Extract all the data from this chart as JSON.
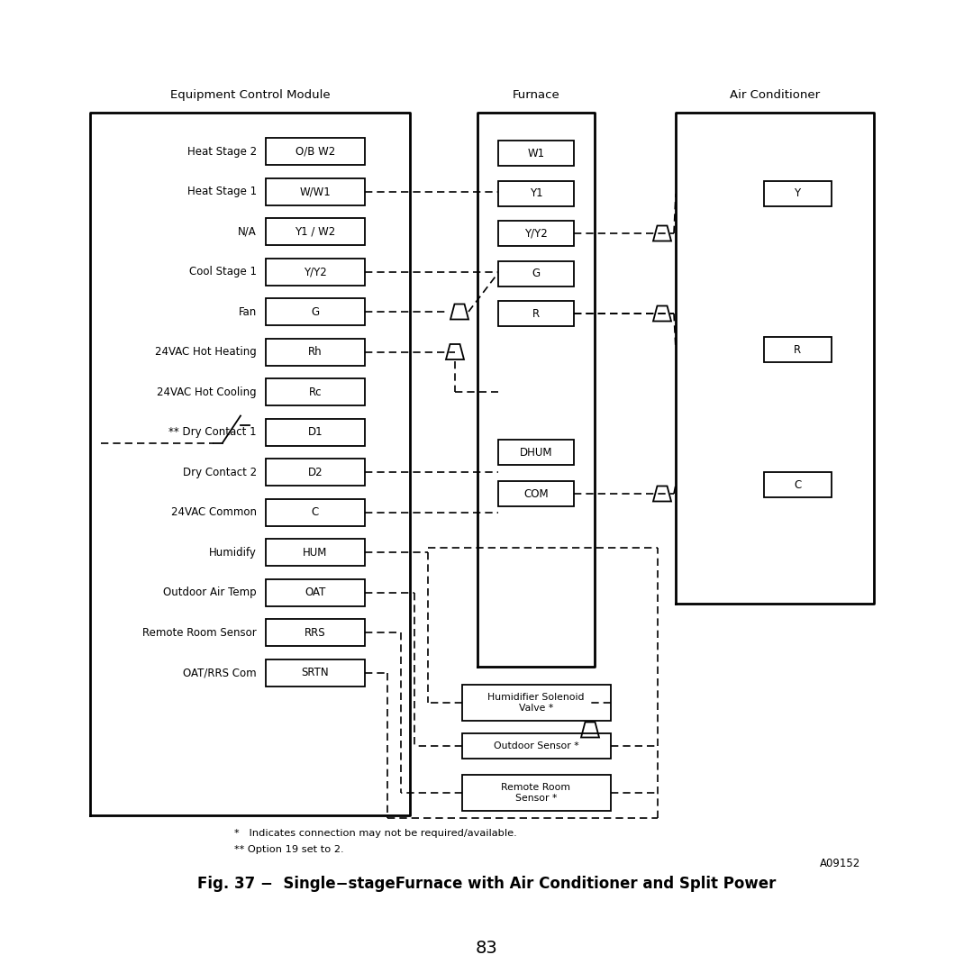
{
  "bg_color": "#ffffff",
  "title": "Fig. 37 −  Single−stageFurnace with Air Conditioner and Split Power",
  "figure_number": "A09152",
  "page_number": "83",
  "note1": "*   Indicates connection may not be required/available.",
  "note2": "** Option 19 set to 2.",
  "ecm_label": "Equipment Control Module",
  "furnace_label": "Furnace",
  "ac_label": "Air Conditioner",
  "ecm_terminals": [
    "O/B W2",
    "W/W1",
    "Y1 / W2",
    "Y/Y2",
    "G",
    "Rh",
    "Rc",
    "D1",
    "D2",
    "C",
    "HUM",
    "OAT",
    "RRS",
    "SRTN"
  ],
  "ecm_labels": [
    "Heat Stage 2",
    "Heat Stage 1",
    "N/A",
    "Cool Stage 1",
    "Fan",
    "24VAC Hot Heating",
    "24VAC Hot Cooling",
    "** Dry Contact 1",
    "Dry Contact 2",
    "24VAC Common",
    "Humidify",
    "Outdoor Air Temp",
    "Remote Room Sensor",
    "OAT/RRS Com"
  ],
  "furnace_terminals": [
    "W1",
    "Y1",
    "Y/Y2",
    "G",
    "R",
    "DHUM",
    "COM"
  ],
  "ac_terminals": [
    "Y",
    "R",
    "C"
  ],
  "external_boxes": [
    "Humidifier Solenoid\nValve *",
    "Outdoor Sensor *",
    "Remote Room\nSensor *"
  ]
}
